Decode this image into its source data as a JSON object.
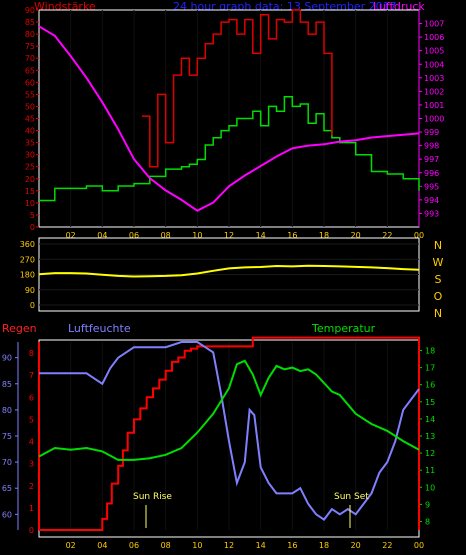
{
  "header": {
    "left": "Windstärke",
    "center": "24 hour graph data: 13 September 2017",
    "right": "Luftdruck"
  },
  "x_ticks": [
    "02",
    "04",
    "06",
    "08",
    "10",
    "12",
    "14",
    "16",
    "18",
    "20",
    "22",
    "00"
  ],
  "colors": {
    "wind": "#e00000",
    "gust": "#e00000",
    "pressure": "#ff00ff",
    "direction": "#ffff00",
    "rain": "#ff0000",
    "humidity": "#8080ff",
    "temperature": "#00dd00",
    "axis_gold": "#ffcc00",
    "grid": "#000000"
  },
  "chart_data": [
    {
      "type": "line",
      "title": "",
      "legend": [
        "Windstärke",
        "Luftdruck"
      ],
      "x_ticks": [
        "02",
        "04",
        "06",
        "08",
        "10",
        "12",
        "14",
        "16",
        "18",
        "20",
        "22",
        "00"
      ],
      "ylim_left": [
        0,
        90
      ],
      "yticks_left": [
        "0",
        "5",
        "10",
        "15",
        "20",
        "25",
        "30",
        "35",
        "40",
        "45",
        "50",
        "55",
        "60",
        "65",
        "70",
        "75",
        "80",
        "85",
        "90"
      ],
      "ylim_right": [
        992,
        1008
      ],
      "yticks_right": [
        "993",
        "994",
        "995",
        "996",
        "997",
        "998",
        "999",
        "1000",
        "1001",
        "1002",
        "1003",
        "1004",
        "1005",
        "1006",
        "1007"
      ],
      "series": [
        {
          "name": "Windstärke",
          "axis": "left",
          "step": true,
          "x": [
            0,
            1,
            2,
            3,
            4,
            5,
            6,
            7,
            8,
            9,
            9.5,
            10,
            10.5,
            11,
            11.5,
            12,
            12.5,
            13,
            13.5,
            14,
            14.5,
            15,
            15.5,
            16,
            16.5,
            17,
            17.5,
            18,
            18.5,
            19,
            20,
            21,
            22,
            23,
            24
          ],
          "y": [
            11,
            16,
            16,
            17,
            15,
            17,
            18,
            21,
            24,
            25,
            26,
            28,
            34,
            37,
            40,
            42,
            45,
            45,
            48,
            42,
            50,
            48,
            54,
            50,
            51,
            43,
            47,
            40,
            37,
            35,
            30,
            23,
            22,
            20,
            15
          ]
        },
        {
          "name": "Böen",
          "axis": "left",
          "step": true,
          "x": [
            0,
            1,
            2,
            3,
            4,
            5,
            6,
            6.5,
            7,
            7.5,
            8,
            8.5,
            9,
            9.5,
            10,
            10.5,
            11,
            11.5,
            12,
            12.5,
            13,
            13.5,
            14,
            14.5,
            15,
            15.5,
            16,
            16.5,
            17,
            17.5,
            18,
            18.5,
            19
          ],
          "y": [
            null,
            null,
            null,
            null,
            null,
            null,
            null,
            46,
            25,
            55,
            35,
            63,
            70,
            63,
            70,
            76,
            80,
            85,
            86,
            80,
            86,
            72,
            88,
            78,
            86,
            85,
            90,
            85,
            80,
            85,
            72,
            38,
            null
          ]
        },
        {
          "name": "Luftdruck",
          "axis": "right",
          "step": false,
          "x": [
            0,
            1,
            2,
            3,
            4,
            5,
            6,
            7,
            8,
            9,
            10,
            11,
            12,
            13,
            14,
            15,
            16,
            17,
            18,
            19,
            20,
            21,
            22,
            23,
            24
          ],
          "y": [
            1006.8,
            1006.1,
            1004.6,
            1003.0,
            1001.2,
            999.2,
            997.0,
            995.6,
            994.7,
            994.0,
            993.2,
            993.8,
            995.0,
            995.8,
            996.5,
            997.2,
            997.8,
            998.0,
            998.1,
            998.3,
            998.4,
            998.6,
            998.7,
            998.8,
            998.9
          ]
        }
      ]
    },
    {
      "type": "line",
      "title": "",
      "x_ticks": [
        "02",
        "04",
        "06",
        "08",
        "10",
        "12",
        "14",
        "16",
        "18",
        "20",
        "22",
        "00"
      ],
      "ylim": [
        0,
        360
      ],
      "yticks": [
        "0",
        "90",
        "180",
        "270",
        "360"
      ],
      "compass_labels": [
        "N",
        "W",
        "S",
        "O",
        "N"
      ],
      "series": [
        {
          "name": "Windrichtung",
          "x": [
            0,
            1,
            2,
            3,
            4,
            5,
            6,
            7,
            8,
            9,
            10,
            11,
            12,
            13,
            14,
            15,
            16,
            17,
            18,
            19,
            20,
            21,
            22,
            23,
            24
          ],
          "y": [
            182,
            188,
            188,
            186,
            178,
            172,
            168,
            170,
            172,
            176,
            186,
            202,
            216,
            222,
            224,
            230,
            228,
            232,
            230,
            228,
            225,
            222,
            218,
            212,
            208
          ]
        }
      ]
    },
    {
      "type": "line",
      "title": "",
      "legend": [
        "Regen",
        "Luftfeuchte",
        "Temperatur"
      ],
      "x_ticks": [
        "02",
        "04",
        "06",
        "08",
        "10",
        "12",
        "14",
        "16",
        "18",
        "20",
        "22",
        "00"
      ],
      "ylim_rain": [
        0,
        8.5
      ],
      "yticks_rain": [
        "0",
        "1",
        "2",
        "3",
        "4",
        "5",
        "6",
        "7",
        "8"
      ],
      "ylim_humidity": [
        57,
        93
      ],
      "yticks_humidity": [
        "60",
        "65",
        "70",
        "75",
        "80",
        "85",
        "90"
      ],
      "ylim_temperature": [
        7.5,
        18.5
      ],
      "yticks_temperature": [
        "8",
        "9",
        "10",
        "11",
        "12",
        "13",
        "14",
        "15",
        "16",
        "17",
        "18"
      ],
      "annotations": [
        "Sun Rise",
        "Sun Set"
      ],
      "series": [
        {
          "name": "Regen",
          "axis": "rain",
          "step": true,
          "x": [
            0,
            4,
            4.3,
            4.6,
            5,
            5.3,
            5.6,
            6,
            6.4,
            6.8,
            7.2,
            7.6,
            8,
            8.4,
            8.8,
            9.2,
            9.6,
            10,
            10.5,
            11,
            11.5,
            12,
            13,
            13.5,
            14,
            16,
            18,
            20,
            22,
            24,
            24
          ],
          "y": [
            0,
            0.5,
            1.2,
            2.1,
            2.9,
            3.6,
            4.4,
            5.0,
            5.5,
            6.0,
            6.4,
            6.8,
            7.2,
            7.6,
            7.8,
            8.1,
            8.2,
            8.3,
            8.3,
            8.3,
            8.3,
            8.3,
            8.3,
            8.7,
            8.7,
            8.7,
            8.7,
            8.7,
            8.7,
            8.7,
            0
          ]
        },
        {
          "name": "Luftfeuchte",
          "axis": "humidity",
          "step": false,
          "x": [
            0,
            1,
            2,
            3,
            3.5,
            4,
            4.5,
            5,
            5.5,
            6,
            7,
            8,
            9,
            10,
            10.5,
            11,
            11.5,
            12,
            12.5,
            13,
            13.3,
            13.6,
            14,
            14.5,
            15,
            16,
            16.5,
            17,
            17.5,
            18,
            18.5,
            19,
            19.5,
            20,
            20.5,
            21,
            21.5,
            22,
            22.5,
            23,
            24
          ],
          "y": [
            87,
            87,
            87,
            87,
            86,
            85,
            88,
            90,
            91,
            92,
            92,
            92,
            93,
            93,
            92,
            91,
            83,
            74,
            66,
            70,
            80,
            79,
            69,
            66,
            64,
            64,
            65,
            62,
            60,
            59,
            61,
            60,
            61,
            60,
            62,
            64,
            68,
            70,
            74,
            80,
            84
          ]
        },
        {
          "name": "Temperatur",
          "axis": "temperature",
          "step": false,
          "x": [
            0,
            1,
            2,
            3,
            4,
            5,
            6,
            7,
            8,
            9,
            10,
            11,
            12,
            12.5,
            13,
            13.5,
            14,
            14.5,
            15,
            15.5,
            16,
            16.5,
            17,
            17.5,
            18,
            18.5,
            19,
            20,
            21,
            22,
            23,
            24
          ],
          "y": [
            11.8,
            12.3,
            12.2,
            12.3,
            12.1,
            11.6,
            11.6,
            11.7,
            11.9,
            12.3,
            13.2,
            14.3,
            15.8,
            17.2,
            17.4,
            16.6,
            15.4,
            16.4,
            17.1,
            16.9,
            17.0,
            16.8,
            16.9,
            16.6,
            16.1,
            15.6,
            15.4,
            14.3,
            13.7,
            13.3,
            12.7,
            12.2
          ]
        }
      ]
    }
  ],
  "panel3_labels": {
    "regen": "Regen",
    "luftfeuchte": "Luftfeuchte",
    "temperatur": "Temperatur",
    "sun_rise": "Sun Rise",
    "sun_set": "Sun Set"
  }
}
